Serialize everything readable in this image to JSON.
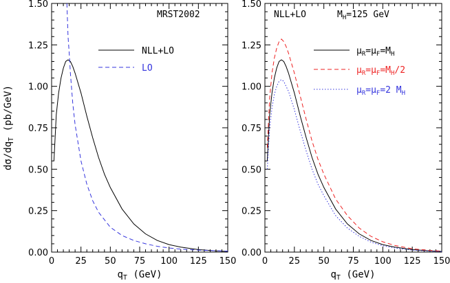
{
  "chart_data": [
    {
      "type": "line",
      "panel": "left",
      "annotation": "MRST2002",
      "ylabel": "dσ/dq_T (pb/GeV)",
      "xlabel": "q_T (GeV)",
      "xlim": [
        0,
        150
      ],
      "ylim": [
        0,
        1.5
      ],
      "x_ticks": [
        0,
        25,
        50,
        75,
        100,
        125,
        150
      ],
      "y_ticks": [
        0.0,
        0.25,
        0.5,
        0.75,
        1.0,
        1.25,
        1.5
      ],
      "legend_position": "top-right",
      "series": [
        {
          "name": "NLL+LO",
          "color": "#000000",
          "dash": "solid",
          "points": [
            [
              2,
              0.55
            ],
            [
              4,
              0.83
            ],
            [
              6,
              0.96
            ],
            [
              8,
              1.05
            ],
            [
              10,
              1.11
            ],
            [
              12,
              1.15
            ],
            [
              14,
              1.16
            ],
            [
              16,
              1.15
            ],
            [
              18,
              1.12
            ],
            [
              20,
              1.08
            ],
            [
              25,
              0.96
            ],
            [
              30,
              0.82
            ],
            [
              35,
              0.69
            ],
            [
              40,
              0.57
            ],
            [
              45,
              0.47
            ],
            [
              50,
              0.39
            ],
            [
              60,
              0.26
            ],
            [
              70,
              0.17
            ],
            [
              80,
              0.11
            ],
            [
              90,
              0.07
            ],
            [
              100,
              0.045
            ],
            [
              110,
              0.03
            ],
            [
              125,
              0.015
            ],
            [
              140,
              0.007
            ],
            [
              150,
              0.004
            ]
          ]
        },
        {
          "name": "LO",
          "color": "#3333dd",
          "dash": "dashed",
          "points": [
            [
              13,
              1.5
            ],
            [
              14,
              1.3
            ],
            [
              15,
              1.2
            ],
            [
              16,
              1.08
            ],
            [
              18,
              0.9
            ],
            [
              20,
              0.77
            ],
            [
              25,
              0.55
            ],
            [
              30,
              0.41
            ],
            [
              35,
              0.31
            ],
            [
              40,
              0.24
            ],
            [
              50,
              0.15
            ],
            [
              60,
              0.1
            ],
            [
              70,
              0.07
            ],
            [
              80,
              0.05
            ],
            [
              90,
              0.035
            ],
            [
              100,
              0.025
            ],
            [
              110,
              0.018
            ],
            [
              125,
              0.012
            ],
            [
              140,
              0.008
            ],
            [
              150,
              0.006
            ]
          ]
        }
      ]
    },
    {
      "type": "line",
      "panel": "right",
      "annotation": "NLL+LO",
      "annotation_mass": "M_H=125 GeV",
      "xlabel": "q_T (GeV)",
      "xlim": [
        0,
        150
      ],
      "ylim": [
        0,
        1.5
      ],
      "x_ticks": [
        0,
        25,
        50,
        75,
        100,
        125,
        150
      ],
      "y_ticks": [
        0.0,
        0.25,
        0.5,
        0.75,
        1.0,
        1.25,
        1.5
      ],
      "legend_position": "top-right",
      "series": [
        {
          "name": "μ_R=μ_F=M_H",
          "color": "#000000",
          "dash": "solid",
          "points": [
            [
              2,
              0.55
            ],
            [
              4,
              0.83
            ],
            [
              6,
              0.96
            ],
            [
              8,
              1.05
            ],
            [
              10,
              1.11
            ],
            [
              12,
              1.15
            ],
            [
              14,
              1.16
            ],
            [
              16,
              1.15
            ],
            [
              18,
              1.12
            ],
            [
              20,
              1.08
            ],
            [
              25,
              0.96
            ],
            [
              30,
              0.82
            ],
            [
              35,
              0.69
            ],
            [
              40,
              0.57
            ],
            [
              45,
              0.47
            ],
            [
              50,
              0.39
            ],
            [
              60,
              0.26
            ],
            [
              70,
              0.17
            ],
            [
              80,
              0.11
            ],
            [
              90,
              0.07
            ],
            [
              100,
              0.045
            ],
            [
              110,
              0.03
            ],
            [
              125,
              0.015
            ],
            [
              140,
              0.007
            ],
            [
              150,
              0.004
            ]
          ]
        },
        {
          "name": "μ_R=μ_F=M_H/2",
          "color": "#ee2222",
          "dash": "dashed",
          "points": [
            [
              2,
              0.63
            ],
            [
              4,
              0.93
            ],
            [
              6,
              1.08
            ],
            [
              8,
              1.17
            ],
            [
              10,
              1.23
            ],
            [
              12,
              1.27
            ],
            [
              14,
              1.285
            ],
            [
              16,
              1.27
            ],
            [
              18,
              1.24
            ],
            [
              20,
              1.2
            ],
            [
              25,
              1.08
            ],
            [
              30,
              0.94
            ],
            [
              35,
              0.8
            ],
            [
              40,
              0.67
            ],
            [
              45,
              0.56
            ],
            [
              50,
              0.47
            ],
            [
              60,
              0.32
            ],
            [
              70,
              0.22
            ],
            [
              80,
              0.145
            ],
            [
              90,
              0.095
            ],
            [
              100,
              0.062
            ],
            [
              110,
              0.04
            ],
            [
              125,
              0.02
            ],
            [
              140,
              0.01
            ],
            [
              150,
              0.006
            ]
          ]
        },
        {
          "name": "μ_R=μ_F=2 M_H",
          "color": "#3333dd",
          "dash": "dotted",
          "points": [
            [
              2,
              0.5
            ],
            [
              4,
              0.75
            ],
            [
              6,
              0.87
            ],
            [
              8,
              0.95
            ],
            [
              10,
              1.0
            ],
            [
              12,
              1.03
            ],
            [
              14,
              1.04
            ],
            [
              16,
              1.03
            ],
            [
              18,
              1.0
            ],
            [
              20,
              0.97
            ],
            [
              25,
              0.86
            ],
            [
              30,
              0.73
            ],
            [
              35,
              0.61
            ],
            [
              40,
              0.5
            ],
            [
              45,
              0.41
            ],
            [
              50,
              0.34
            ],
            [
              60,
              0.22
            ],
            [
              70,
              0.145
            ],
            [
              80,
              0.095
            ],
            [
              90,
              0.06
            ],
            [
              100,
              0.038
            ],
            [
              110,
              0.025
            ],
            [
              125,
              0.012
            ],
            [
              140,
              0.006
            ],
            [
              150,
              0.003
            ]
          ]
        }
      ]
    }
  ],
  "labels": {
    "left_title": "MRST2002",
    "left_legend_solid": "NLL+LO",
    "left_legend_dashed": "LO",
    "right_title_a": "NLL+LO",
    "right_title_m": "M",
    "right_title_h": "H",
    "right_title_b": "=125 GeV",
    "ylabel_main": "dσ/dq",
    "ylabel_sub": "T",
    "ylabel_unit": " (pb/GeV)",
    "xlabel_main": "q",
    "xlabel_sub": "T",
    "xlabel_unit": " (GeV)",
    "leg1_mu": "μ",
    "leg1_r": "R",
    "leg1_eq": "=",
    "leg1_f": "F",
    "leg1_m": "=M",
    "leg1_h": "H",
    "leg2_tail": "/2",
    "leg3_mid": "=2 M"
  }
}
